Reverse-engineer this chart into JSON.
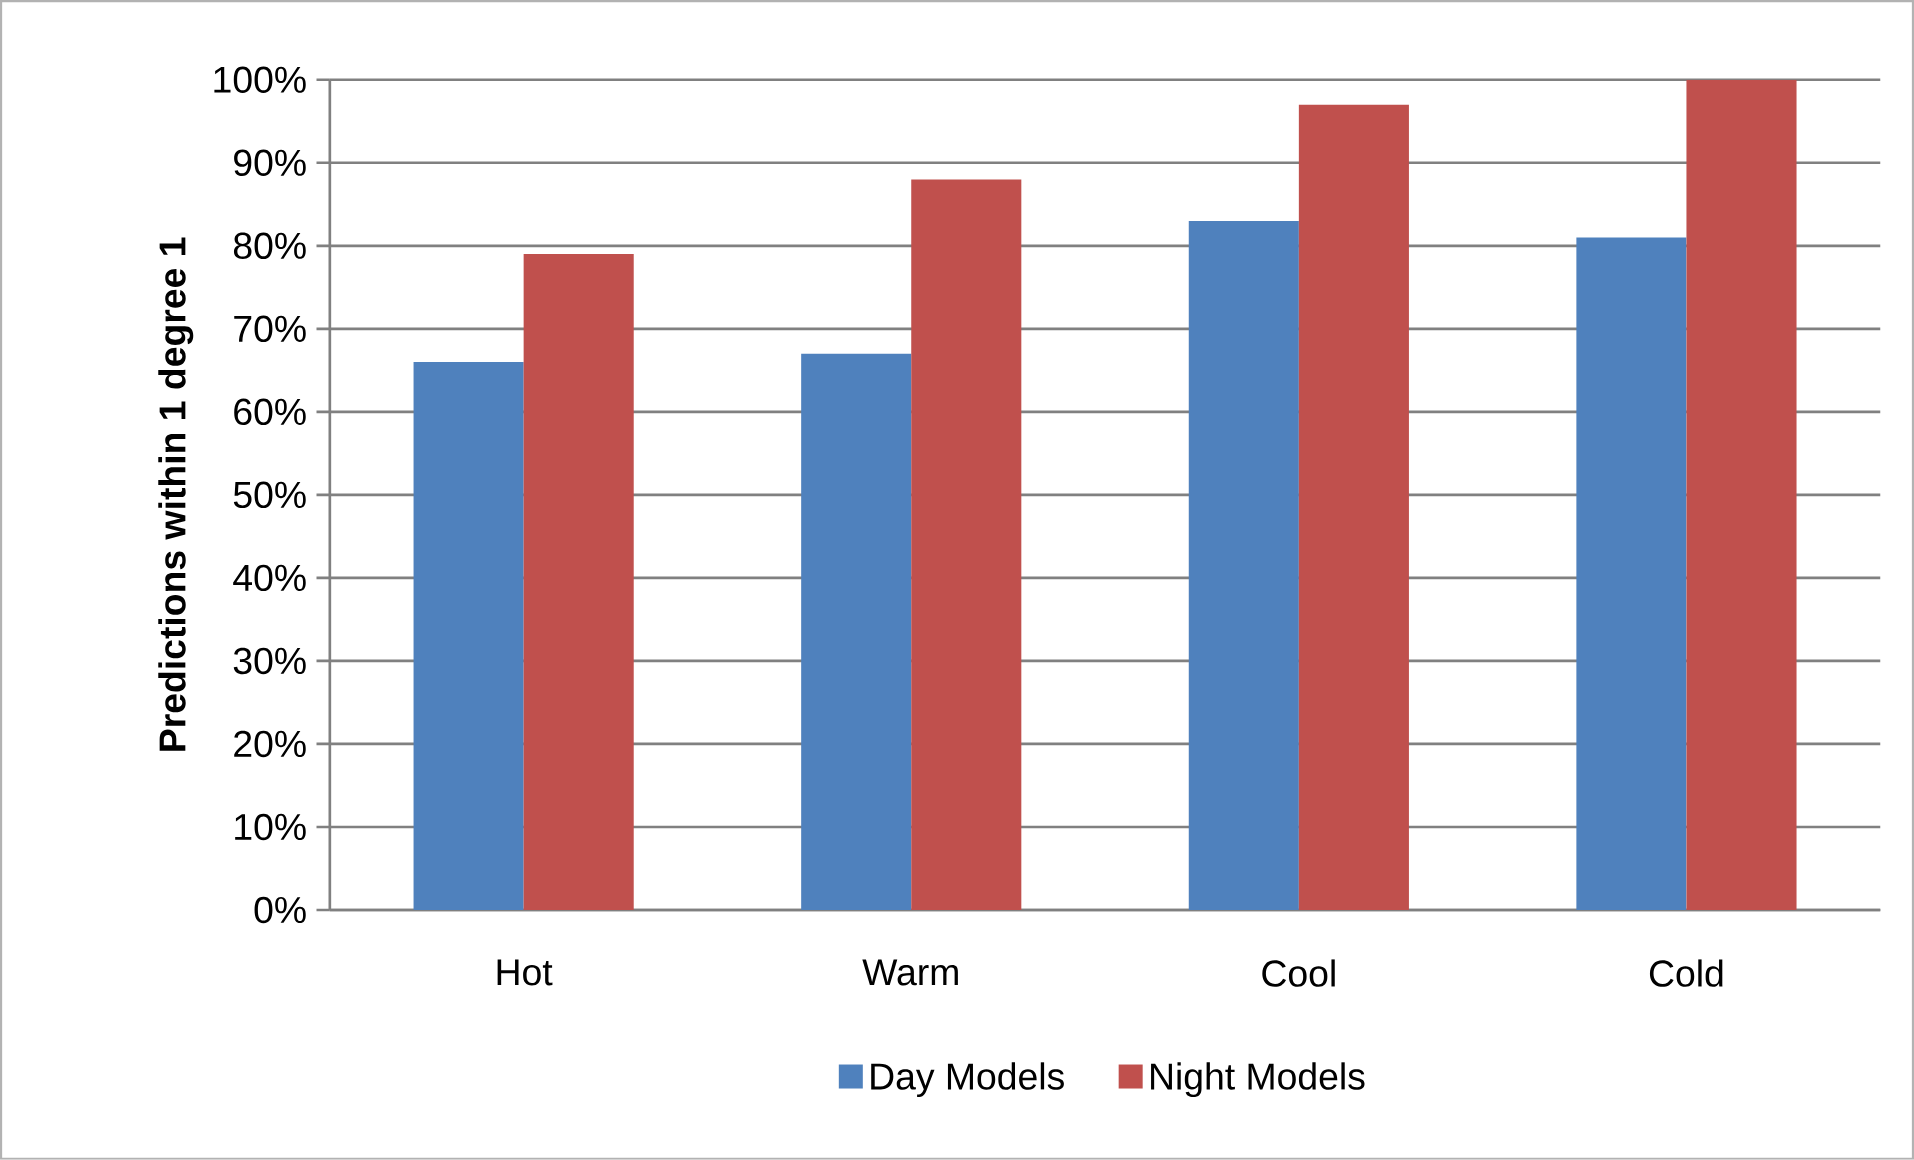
{
  "chart_data": {
    "type": "bar",
    "ylabel": "Predictions within 1 degree 1",
    "categories": [
      "Hot",
      "Warm",
      "Cool",
      "Cold"
    ],
    "series": [
      {
        "name": "Day Models",
        "color": "#4f81bd",
        "values": [
          66,
          67,
          83,
          81
        ]
      },
      {
        "name": "Night Models",
        "color": "#c0504d",
        "values": [
          79,
          88,
          97,
          100
        ]
      }
    ],
    "ylim": [
      0,
      100
    ],
    "yticks": [
      {
        "value": 0,
        "label": "0%"
      },
      {
        "value": 10,
        "label": "10%"
      },
      {
        "value": 20,
        "label": "20%"
      },
      {
        "value": 30,
        "label": "30%"
      },
      {
        "value": 40,
        "label": "40%"
      },
      {
        "value": 50,
        "label": "50%"
      },
      {
        "value": 60,
        "label": "60%"
      },
      {
        "value": 70,
        "label": "70%"
      },
      {
        "value": 80,
        "label": "80%"
      },
      {
        "value": 90,
        "label": "90%"
      },
      {
        "value": 100,
        "label": "100%"
      }
    ],
    "grid": "y",
    "legend": "bottom"
  }
}
